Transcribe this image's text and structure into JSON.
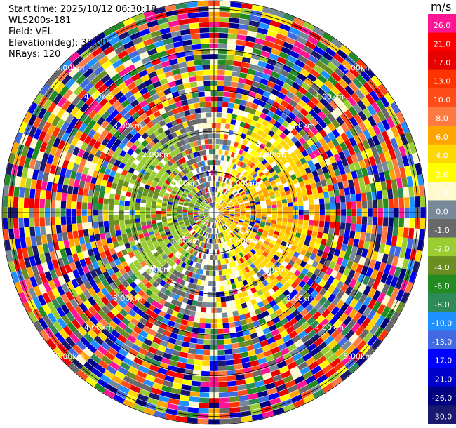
{
  "info": {
    "start_time": "Start time: 2025/10/12 06:30:18",
    "station": "WLS200s-181",
    "field": "Field: VEL",
    "elevation": "Elevation(deg): 35.00",
    "nrays": "NRays: 120"
  },
  "chart_data": {
    "type": "heatmap",
    "projection": "polar PPI",
    "field": "VEL",
    "units": "m/s",
    "nrays": 120,
    "range_rings_km": [
      1.0,
      2.0,
      3.0,
      4.0,
      5.0
    ],
    "ring_label": "km",
    "ring_labels": [
      "1.00km",
      "2.00km",
      "3.00km",
      "4.00km",
      "5.00km"
    ],
    "max_range_km": 5.2,
    "colorbar": {
      "unit": "m/s",
      "ticks": [
        "26.0",
        "21.0",
        "17.0",
        "13.0",
        "10.0",
        "8.0",
        "6.0",
        "4.0",
        "2.0",
        "1.0",
        "0.0",
        "-1.0",
        "-2.0",
        "-4.0",
        "-6.0",
        "-8.0",
        "-10.0",
        "-13.0",
        "-17.0",
        "-21.0",
        "-26.0",
        "-30.0"
      ],
      "colors": [
        "#ff1493",
        "#ff0000",
        "#e60000",
        "#ff3300",
        "#ff4d1a",
        "#ff7a40",
        "#ffa500",
        "#ffd700",
        "#ffff00",
        "#fffacd",
        "#778899",
        "#696969",
        "#9acd32",
        "#6b8e23",
        "#228b22",
        "#2e8b57",
        "#1e90ff",
        "#4169e1",
        "#0000ff",
        "#0000cd",
        "#000080",
        "#191970"
      ]
    }
  }
}
